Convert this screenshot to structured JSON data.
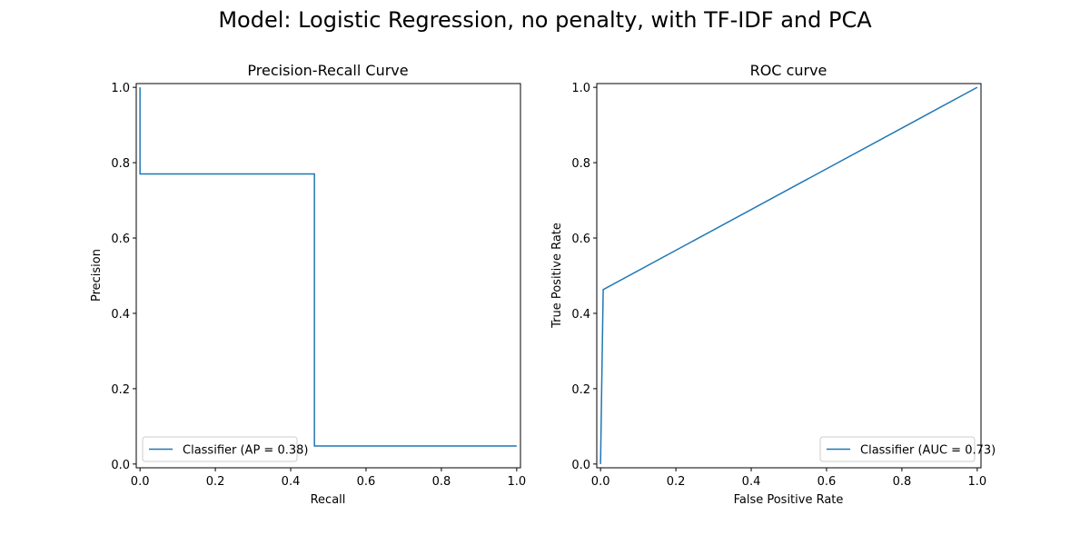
{
  "figure": {
    "suptitle": "Model: Logistic Regression, no penalty, with TF-IDF and PCA"
  },
  "colors": {
    "series": "#1f77b4",
    "axes": "#000000",
    "legend_border": "#cccccc"
  },
  "chart_data": [
    {
      "type": "line",
      "title": "Precision-Recall Curve",
      "xlabel": "Recall",
      "ylabel": "Precision",
      "xlim": [
        -0.01,
        1.01
      ],
      "ylim": [
        -0.01,
        1.01
      ],
      "xticks": [
        0.0,
        0.2,
        0.4,
        0.6,
        0.8,
        1.0
      ],
      "yticks": [
        0.0,
        0.2,
        0.4,
        0.6,
        0.8,
        1.0
      ],
      "xtick_labels": [
        "0.0",
        "0.2",
        "0.4",
        "0.6",
        "0.8",
        "1.0"
      ],
      "ytick_labels": [
        "0.0",
        "0.2",
        "0.4",
        "0.6",
        "0.8",
        "1.0"
      ],
      "grid": false,
      "legend": "lower-left",
      "series": [
        {
          "name": "Classifier (AP = 0.38)",
          "x": [
            0.0,
            0.0,
            0.463,
            0.463,
            1.0
          ],
          "y": [
            1.0,
            0.77,
            0.77,
            0.048,
            0.048
          ]
        }
      ]
    },
    {
      "type": "line",
      "title": "ROC curve",
      "xlabel": "False Positive Rate",
      "ylabel": "True Positive Rate",
      "xlim": [
        -0.01,
        1.01
      ],
      "ylim": [
        -0.01,
        1.01
      ],
      "xticks": [
        0.0,
        0.2,
        0.4,
        0.6,
        0.8,
        1.0
      ],
      "yticks": [
        0.0,
        0.2,
        0.4,
        0.6,
        0.8,
        1.0
      ],
      "xtick_labels": [
        "0.0",
        "0.2",
        "0.4",
        "0.6",
        "0.8",
        "1.0"
      ],
      "ytick_labels": [
        "0.0",
        "0.2",
        "0.4",
        "0.6",
        "0.8",
        "1.0"
      ],
      "grid": false,
      "legend": "lower-right",
      "series": [
        {
          "name": "Classifier (AUC = 0.73)",
          "x": [
            0.0,
            0.007,
            1.0
          ],
          "y": [
            0.0,
            0.463,
            1.0
          ]
        }
      ]
    }
  ]
}
